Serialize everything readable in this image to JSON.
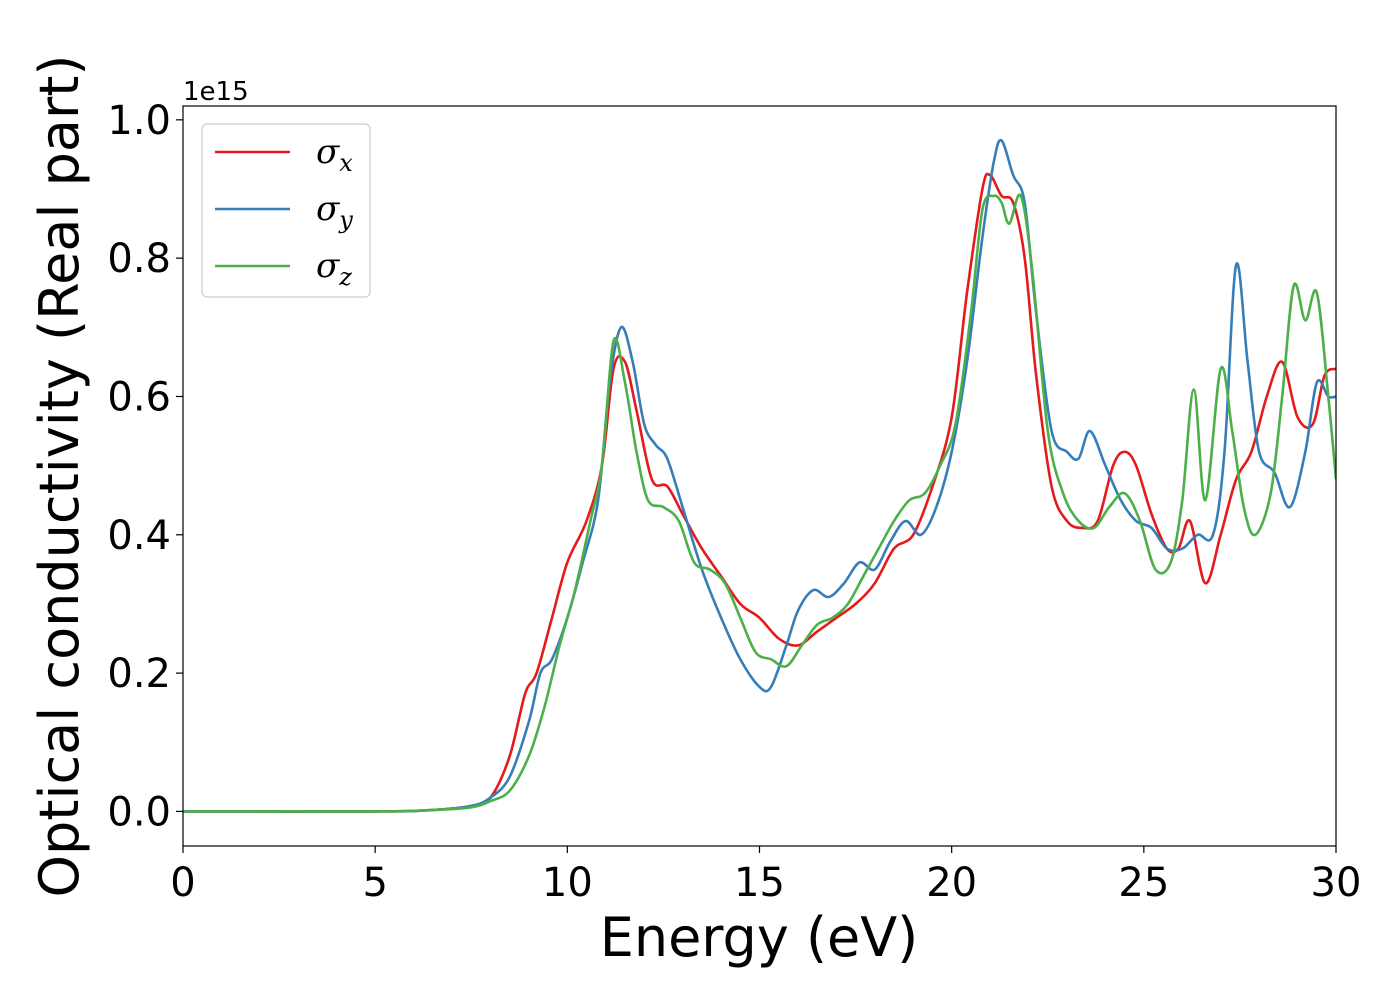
{
  "chart_data": {
    "type": "line",
    "xlabel": "Energy (eV)",
    "ylabel": "Optical conductivity (Real part)",
    "y_offset_label": "1e15",
    "xlim": [
      0,
      30
    ],
    "ylim": [
      -0.05,
      1.02
    ],
    "x_ticks": [
      0,
      5,
      10,
      15,
      20,
      25,
      30
    ],
    "x_tick_labels": [
      "0",
      "5",
      "10",
      "15",
      "20",
      "25",
      "30"
    ],
    "y_ticks": [
      0.0,
      0.2,
      0.4,
      0.6,
      0.8,
      1.0
    ],
    "y_tick_labels": [
      "0.0",
      "0.2",
      "0.4",
      "0.6",
      "0.8",
      "1.0"
    ],
    "grid": false,
    "legend_position": "top-left",
    "series": [
      {
        "name": "σx",
        "legend_symbol": "σ",
        "legend_subscript": "x",
        "color": "#e41a1c",
        "x": [
          0,
          5,
          6.5,
          7.5,
          8.0,
          8.5,
          8.9,
          9.2,
          9.6,
          10.0,
          10.5,
          10.9,
          11.2,
          11.5,
          11.8,
          12.2,
          12.6,
          13.0,
          13.5,
          14.0,
          14.5,
          15.0,
          15.5,
          16.0,
          16.5,
          17.0,
          17.5,
          18.0,
          18.5,
          19.0,
          19.5,
          20.0,
          20.4,
          20.8,
          21.0,
          21.3,
          21.6,
          21.9,
          22.2,
          22.6,
          23.0,
          23.4,
          23.8,
          24.2,
          24.5,
          24.8,
          25.2,
          25.6,
          25.9,
          26.2,
          26.6,
          27.0,
          27.4,
          27.8,
          28.2,
          28.6,
          29.0,
          29.4,
          29.7,
          30.0
        ],
        "y": [
          0.0,
          0.0,
          0.002,
          0.008,
          0.02,
          0.08,
          0.17,
          0.2,
          0.28,
          0.36,
          0.42,
          0.5,
          0.64,
          0.65,
          0.58,
          0.48,
          0.47,
          0.43,
          0.38,
          0.34,
          0.3,
          0.28,
          0.25,
          0.24,
          0.26,
          0.28,
          0.3,
          0.33,
          0.38,
          0.4,
          0.47,
          0.57,
          0.75,
          0.9,
          0.92,
          0.89,
          0.88,
          0.8,
          0.63,
          0.47,
          0.42,
          0.41,
          0.42,
          0.5,
          0.52,
          0.5,
          0.43,
          0.38,
          0.38,
          0.42,
          0.33,
          0.4,
          0.48,
          0.52,
          0.6,
          0.65,
          0.57,
          0.56,
          0.63,
          0.64
        ]
      },
      {
        "name": "σy",
        "legend_symbol": "σ",
        "legend_subscript": "y",
        "color": "#377eb8",
        "x": [
          0,
          5,
          6.5,
          7.5,
          8.0,
          8.5,
          9.0,
          9.3,
          9.6,
          10.0,
          10.4,
          10.8,
          11.1,
          11.4,
          11.7,
          12.0,
          12.3,
          12.6,
          13.0,
          13.5,
          14.0,
          14.5,
          15.0,
          15.3,
          15.7,
          16.0,
          16.4,
          16.8,
          17.2,
          17.6,
          18.0,
          18.4,
          18.8,
          19.2,
          19.6,
          20.0,
          20.4,
          20.8,
          21.1,
          21.3,
          21.6,
          21.9,
          22.2,
          22.6,
          23.0,
          23.3,
          23.6,
          24.0,
          24.4,
          24.8,
          25.2,
          25.6,
          26.0,
          26.4,
          26.8,
          27.1,
          27.4,
          27.7,
          28.0,
          28.4,
          28.8,
          29.2,
          29.5,
          29.8,
          30.0
        ],
        "y": [
          0.0,
          0.0,
          0.002,
          0.008,
          0.02,
          0.05,
          0.13,
          0.2,
          0.22,
          0.28,
          0.36,
          0.45,
          0.62,
          0.7,
          0.65,
          0.56,
          0.53,
          0.51,
          0.44,
          0.35,
          0.28,
          0.22,
          0.18,
          0.18,
          0.24,
          0.29,
          0.32,
          0.31,
          0.33,
          0.36,
          0.35,
          0.39,
          0.42,
          0.4,
          0.44,
          0.52,
          0.65,
          0.83,
          0.94,
          0.97,
          0.92,
          0.88,
          0.72,
          0.55,
          0.52,
          0.51,
          0.55,
          0.5,
          0.45,
          0.42,
          0.41,
          0.38,
          0.38,
          0.4,
          0.4,
          0.52,
          0.79,
          0.65,
          0.52,
          0.49,
          0.44,
          0.52,
          0.62,
          0.6,
          0.6
        ]
      },
      {
        "name": "σz",
        "legend_symbol": "σ",
        "legend_subscript": "z",
        "color": "#4daf4a",
        "x": [
          0,
          5,
          6.5,
          7.5,
          8.0,
          8.5,
          9.0,
          9.4,
          9.8,
          10.2,
          10.6,
          10.9,
          11.2,
          11.5,
          11.8,
          12.1,
          12.5,
          12.9,
          13.3,
          13.7,
          14.1,
          14.5,
          14.9,
          15.3,
          15.7,
          16.1,
          16.5,
          16.9,
          17.3,
          17.7,
          18.1,
          18.5,
          18.9,
          19.3,
          19.7,
          20.1,
          20.5,
          20.8,
          21.1,
          21.3,
          21.5,
          21.8,
          22.1,
          22.5,
          22.9,
          23.3,
          23.7,
          24.1,
          24.5,
          24.9,
          25.3,
          25.7,
          26.0,
          26.3,
          26.6,
          27.0,
          27.3,
          27.6,
          27.9,
          28.3,
          28.6,
          28.9,
          29.2,
          29.5,
          29.8,
          30.0
        ],
        "y": [
          0.0,
          0.0,
          0.002,
          0.006,
          0.015,
          0.03,
          0.08,
          0.15,
          0.24,
          0.32,
          0.42,
          0.5,
          0.68,
          0.62,
          0.52,
          0.45,
          0.44,
          0.42,
          0.36,
          0.35,
          0.33,
          0.28,
          0.23,
          0.22,
          0.21,
          0.24,
          0.27,
          0.28,
          0.3,
          0.34,
          0.38,
          0.42,
          0.45,
          0.46,
          0.5,
          0.56,
          0.72,
          0.87,
          0.89,
          0.88,
          0.85,
          0.89,
          0.78,
          0.55,
          0.46,
          0.42,
          0.41,
          0.44,
          0.46,
          0.42,
          0.35,
          0.36,
          0.45,
          0.61,
          0.45,
          0.64,
          0.55,
          0.44,
          0.4,
          0.46,
          0.6,
          0.76,
          0.71,
          0.75,
          0.6,
          0.48
        ]
      }
    ]
  }
}
